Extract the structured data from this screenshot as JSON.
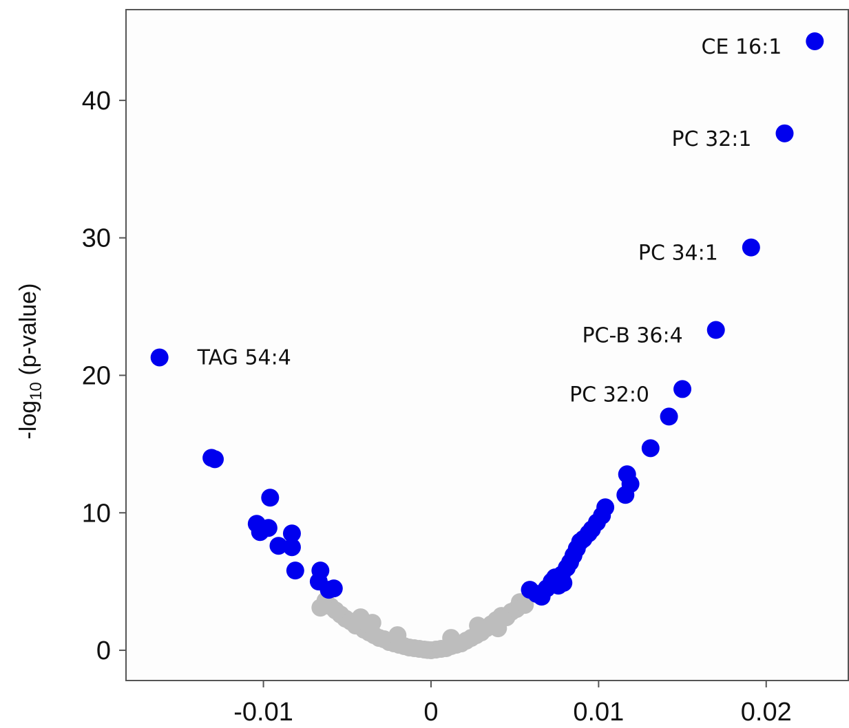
{
  "chart_data": {
    "type": "scatter",
    "title": "",
    "xlabel": "",
    "ylabel_main": "-log",
    "ylabel_sub": "10",
    "ylabel_tail": " (p-value)",
    "xlim": [
      -0.0182,
      0.0249
    ],
    "ylim": [
      -2.2,
      46.6
    ],
    "x_ticks": [
      -0.01,
      0,
      0.01,
      0.02
    ],
    "x_tick_labels": [
      "-0.01",
      "0",
      "0.01",
      "0.02"
    ],
    "y_ticks": [
      0,
      10,
      20,
      30,
      40
    ],
    "y_tick_labels": [
      "0",
      "10",
      "20",
      "30",
      "40"
    ],
    "grid": false,
    "colors": {
      "significant": "#0000ee",
      "nonsignificant": "#bdbdbd",
      "axis": "#555555"
    },
    "series": [
      {
        "color": "#0000ee",
        "points": [
          {
            "x": -0.0162,
            "y": 21.3,
            "label": "TAG 54:4"
          },
          {
            "x": -0.0131,
            "y": 14.0
          },
          {
            "x": -0.0129,
            "y": 13.9
          },
          {
            "x": -0.0096,
            "y": 11.1
          },
          {
            "x": -0.0104,
            "y": 9.2
          },
          {
            "x": -0.0102,
            "y": 8.6
          },
          {
            "x": -0.0097,
            "y": 8.9
          },
          {
            "x": -0.0091,
            "y": 7.6
          },
          {
            "x": -0.0083,
            "y": 8.5
          },
          {
            "x": -0.0083,
            "y": 7.5
          },
          {
            "x": -0.0081,
            "y": 5.8
          },
          {
            "x": -0.0066,
            "y": 5.8
          },
          {
            "x": -0.0067,
            "y": 5.0
          },
          {
            "x": -0.0061,
            "y": 4.4
          },
          {
            "x": -0.0058,
            "y": 4.5
          },
          {
            "x": 0.0059,
            "y": 4.4
          },
          {
            "x": 0.0063,
            "y": 4.1
          },
          {
            "x": 0.0066,
            "y": 3.9
          },
          {
            "x": 0.0069,
            "y": 4.5
          },
          {
            "x": 0.0072,
            "y": 5.0
          },
          {
            "x": 0.0074,
            "y": 5.3
          },
          {
            "x": 0.0076,
            "y": 4.7
          },
          {
            "x": 0.0078,
            "y": 5.5
          },
          {
            "x": 0.0079,
            "y": 4.9
          },
          {
            "x": 0.0081,
            "y": 6.0
          },
          {
            "x": 0.0083,
            "y": 6.4
          },
          {
            "x": 0.0085,
            "y": 6.9
          },
          {
            "x": 0.0087,
            "y": 7.4
          },
          {
            "x": 0.0089,
            "y": 7.9
          },
          {
            "x": 0.0091,
            "y": 8.1
          },
          {
            "x": 0.0094,
            "y": 8.5
          },
          {
            "x": 0.0096,
            "y": 8.8
          },
          {
            "x": 0.0099,
            "y": 9.3
          },
          {
            "x": 0.0102,
            "y": 9.8
          },
          {
            "x": 0.0104,
            "y": 10.4
          },
          {
            "x": 0.0116,
            "y": 11.3
          },
          {
            "x": 0.0119,
            "y": 12.1
          },
          {
            "x": 0.0117,
            "y": 12.8
          },
          {
            "x": 0.0131,
            "y": 14.7
          },
          {
            "x": 0.0142,
            "y": 17.0
          },
          {
            "x": 0.015,
            "y": 19.0,
            "label": "PC 32:0"
          },
          {
            "x": 0.017,
            "y": 23.3,
            "label": "PC-B 36:4"
          },
          {
            "x": 0.0191,
            "y": 29.3,
            "label": "PC 34:1"
          },
          {
            "x": 0.0211,
            "y": 37.6,
            "label": "PC 32:1"
          },
          {
            "x": 0.0229,
            "y": 44.3,
            "label": "CE 16:1"
          }
        ]
      },
      {
        "color": "#bdbdbd",
        "points": [
          {
            "x": -0.0063,
            "y": 3.6
          },
          {
            "x": -0.006,
            "y": 3.2
          },
          {
            "x": -0.0057,
            "y": 2.9
          },
          {
            "x": -0.0054,
            "y": 2.6
          },
          {
            "x": -0.0051,
            "y": 2.3
          },
          {
            "x": -0.0048,
            "y": 2.1
          },
          {
            "x": -0.0045,
            "y": 1.8
          },
          {
            "x": -0.0042,
            "y": 2.4
          },
          {
            "x": -0.004,
            "y": 1.5
          },
          {
            "x": -0.0037,
            "y": 1.3
          },
          {
            "x": -0.0034,
            "y": 1.1
          },
          {
            "x": -0.0031,
            "y": 0.9
          },
          {
            "x": -0.0028,
            "y": 0.8
          },
          {
            "x": -0.0025,
            "y": 0.6
          },
          {
            "x": -0.0022,
            "y": 0.5
          },
          {
            "x": -0.0019,
            "y": 0.4
          },
          {
            "x": -0.0016,
            "y": 0.3
          },
          {
            "x": -0.0013,
            "y": 0.2
          },
          {
            "x": -0.001,
            "y": 0.15
          },
          {
            "x": -0.0007,
            "y": 0.1
          },
          {
            "x": -0.0004,
            "y": 0.05
          },
          {
            "x": -0.0002,
            "y": 0.02
          },
          {
            "x": 0.0,
            "y": 0.0
          },
          {
            "x": 0.0003,
            "y": 0.05
          },
          {
            "x": 0.0006,
            "y": 0.1
          },
          {
            "x": 0.0009,
            "y": 0.15
          },
          {
            "x": 0.0012,
            "y": 0.3
          },
          {
            "x": 0.0012,
            "y": 0.9
          },
          {
            "x": 0.0015,
            "y": 0.4
          },
          {
            "x": 0.0018,
            "y": 0.5
          },
          {
            "x": 0.0021,
            "y": 0.7
          },
          {
            "x": 0.0024,
            "y": 0.9
          },
          {
            "x": 0.0027,
            "y": 1.1
          },
          {
            "x": 0.003,
            "y": 1.3
          },
          {
            "x": 0.0033,
            "y": 1.6
          },
          {
            "x": 0.0036,
            "y": 1.9
          },
          {
            "x": 0.0039,
            "y": 2.2
          },
          {
            "x": 0.0042,
            "y": 2.5
          },
          {
            "x": 0.0045,
            "y": 2.4
          },
          {
            "x": 0.0048,
            "y": 2.8
          },
          {
            "x": 0.0051,
            "y": 3.0
          },
          {
            "x": 0.0053,
            "y": 3.5
          },
          {
            "x": 0.0056,
            "y": 3.3
          },
          {
            "x": -0.0066,
            "y": 3.1
          },
          {
            "x": -0.0035,
            "y": 2.0
          },
          {
            "x": 0.004,
            "y": 1.6
          },
          {
            "x": 0.0028,
            "y": 1.8
          },
          {
            "x": -0.002,
            "y": 1.1
          }
        ]
      }
    ]
  }
}
